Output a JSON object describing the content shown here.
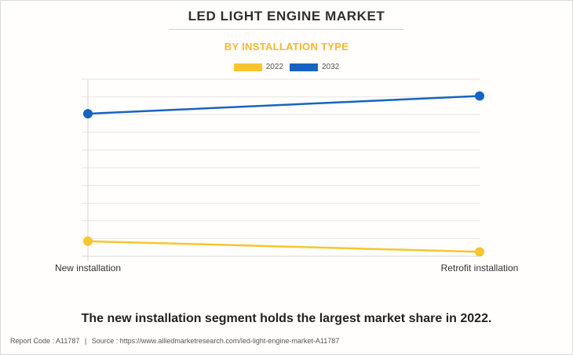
{
  "header": {
    "title": "LED LIGHT ENGINE MARKET",
    "subtitle": "BY INSTALLATION TYPE"
  },
  "legend": [
    {
      "label": "2022",
      "color": "#f7c52e"
    },
    {
      "label": "2032",
      "color": "#1565c0"
    }
  ],
  "chart_data": {
    "type": "line",
    "title": "LED LIGHT ENGINE MARKET",
    "subtitle": "BY INSTALLATION TYPE",
    "categories": [
      "New installation",
      "Retrofit installation"
    ],
    "series": [
      {
        "name": "2022",
        "color": "#f7c52e",
        "values": [
          8.5,
          2.5
        ]
      },
      {
        "name": "2032",
        "color": "#1565c0",
        "values": [
          80.5,
          90.5
        ]
      }
    ],
    "ylim": [
      0,
      100
    ],
    "grid": true,
    "legend_position": "top-center",
    "xlabel": "",
    "ylabel": ""
  },
  "caption": "The new installation segment holds the largest market share in 2022.",
  "footer": {
    "report_code": "Report Code : A11787",
    "separator": "|",
    "source": "Source : https://www.alliedmarketresearch.com/led-light-engine-market-A11787"
  }
}
